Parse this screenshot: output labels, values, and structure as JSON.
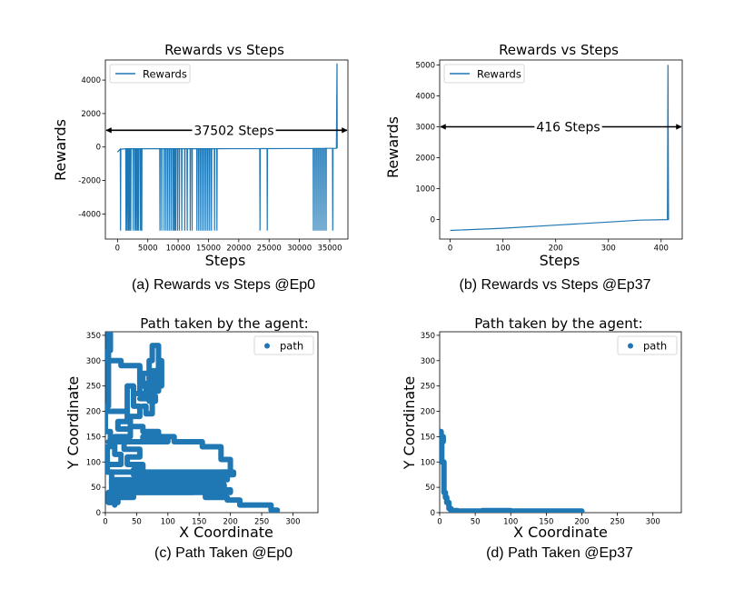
{
  "chart_data": [
    {
      "id": "a",
      "type": "line",
      "title": "Rewards vs Steps",
      "xlabel": "Steps",
      "ylabel": "Rewards",
      "caption": "(a) Rewards vs Steps @Ep0",
      "xlim": [
        -2000,
        38000
      ],
      "ylim": [
        -5500,
        5200
      ],
      "xticks": [
        0,
        5000,
        10000,
        15000,
        20000,
        25000,
        30000,
        35000
      ],
      "yticks": [
        -4000,
        -2000,
        0,
        2000,
        4000
      ],
      "legend": {
        "position": "upper-left",
        "entries": [
          "Rewards"
        ]
      },
      "annotation": {
        "text": "37502 Steps",
        "type": "double-arrow",
        "y": 1000,
        "x_from": -2000,
        "x_to": 38000
      },
      "series": [
        {
          "name": "Rewards",
          "color": "#1f77b4",
          "baseline": [
            [
              0,
              -300
            ],
            [
              500,
              -130
            ],
            [
              1000,
              -100
            ],
            [
              20000,
              -100
            ],
            [
              36000,
              -80
            ],
            [
              37000,
              -50
            ]
          ],
          "spikes_x": [
            500,
            1400,
            1600,
            1800,
            2000,
            2200,
            2600,
            2900,
            3100,
            3300,
            3500,
            3800,
            3900,
            4000,
            7000,
            7300,
            7700,
            8000,
            8300,
            8600,
            8900,
            9200,
            9400,
            9600,
            9900,
            10200,
            10600,
            11100,
            11500,
            12000,
            12300,
            13100,
            13400,
            13700,
            14000,
            14300,
            14600,
            14900,
            15200,
            15500,
            16000,
            16400,
            23500,
            24700,
            32300,
            32600,
            32900,
            33200,
            33500,
            33800,
            34100,
            34400,
            35500
          ],
          "spike_min": -5000,
          "final": {
            "x": 36200,
            "y": 5000
          }
        }
      ]
    },
    {
      "id": "b",
      "type": "line",
      "title": "Rewards vs Steps",
      "xlabel": "Steps",
      "ylabel": "Rewards",
      "caption": "(b) Rewards vs Steps @Ep37",
      "xlim": [
        -20,
        440
      ],
      "ylim": [
        -630,
        5160
      ],
      "xticks": [
        0,
        100,
        200,
        300,
        400
      ],
      "yticks": [
        0,
        1000,
        2000,
        3000,
        4000,
        5000
      ],
      "legend": {
        "position": "upper-left",
        "entries": [
          "Rewards"
        ]
      },
      "annotation": {
        "text": "416 Steps",
        "type": "double-arrow",
        "y": 3000,
        "x_from": -20,
        "x_to": 440
      },
      "series": [
        {
          "name": "Rewards",
          "color": "#1f77b4",
          "points": [
            [
              0,
              -350
            ],
            [
              100,
              -280
            ],
            [
              200,
              -180
            ],
            [
              300,
              -80
            ],
            [
              360,
              -20
            ],
            [
              412,
              0
            ],
            [
              413,
              5000
            ],
            [
              414,
              -20
            ]
          ]
        }
      ]
    },
    {
      "id": "c",
      "type": "scatter",
      "title": "Path taken by the agent:",
      "xlabel": "X Coordinate",
      "ylabel": "Y Coordinate",
      "caption": "(c) Path Taken @Ep0",
      "xlim": [
        0,
        340
      ],
      "ylim": [
        0,
        357
      ],
      "xticks": [
        0,
        50,
        100,
        150,
        200,
        250,
        300
      ],
      "yticks": [
        0,
        50,
        100,
        150,
        200,
        250,
        300,
        350
      ],
      "legend": {
        "position": "upper-right",
        "entries": [
          "path"
        ]
      },
      "series": [
        {
          "name": "path",
          "color": "#1f77b4",
          "paths": [
            [
              [
                8,
                355
              ],
              [
                8,
                320
              ],
              [
                3,
                320
              ],
              [
                3,
                300
              ],
              [
                25,
                300
              ],
              [
                25,
                290
              ],
              [
                55,
                290
              ],
              [
                55,
                255
              ],
              [
                65,
                255
              ],
              [
                65,
                235
              ],
              [
                45,
                235
              ],
              [
                45,
                210
              ],
              [
                55,
                210
              ],
              [
                55,
                190
              ],
              [
                40,
                190
              ],
              [
                40,
                170
              ],
              [
                60,
                170
              ],
              [
                60,
                160
              ],
              [
                85,
                160
              ],
              [
                85,
                150
              ],
              [
                110,
                150
              ],
              [
                110,
                140
              ],
              [
                155,
                140
              ],
              [
                155,
                130
              ],
              [
                185,
                130
              ],
              [
                185,
                105
              ],
              [
                200,
                105
              ],
              [
                200,
                80
              ],
              [
                185,
                80
              ],
              [
                185,
                60
              ],
              [
                160,
                60
              ],
              [
                160,
                30
              ],
              [
                195,
                30
              ],
              [
                195,
                25
              ],
              [
                215,
                25
              ],
              [
                215,
                15
              ],
              [
                265,
                15
              ],
              [
                265,
                5
              ],
              [
                275,
                5
              ]
            ],
            [
              [
                5,
                357
              ],
              [
                5,
                210
              ],
              [
                0,
                210
              ],
              [
                0,
                160
              ],
              [
                8,
                160
              ],
              [
                8,
                130
              ],
              [
                3,
                130
              ],
              [
                3,
                80
              ],
              [
                10,
                80
              ],
              [
                10,
                40
              ],
              [
                5,
                40
              ],
              [
                5,
                25
              ],
              [
                15,
                25
              ],
              [
                15,
                15
              ]
            ],
            [
              [
                5,
                140
              ],
              [
                30,
                140
              ],
              [
                30,
                125
              ],
              [
                55,
                125
              ],
              [
                55,
                110
              ],
              [
                35,
                110
              ],
              [
                35,
                95
              ],
              [
                60,
                95
              ],
              [
                60,
                85
              ],
              [
                45,
                85
              ],
              [
                45,
                75
              ],
              [
                80,
                75
              ],
              [
                80,
                70
              ],
              [
                150,
                70
              ],
              [
                150,
                65
              ],
              [
                185,
                65
              ],
              [
                185,
                55
              ],
              [
                120,
                55
              ],
              [
                120,
                45
              ],
              [
                140,
                45
              ],
              [
                140,
                40
              ],
              [
                45,
                40
              ],
              [
                45,
                30
              ],
              [
                5,
                30
              ]
            ],
            [
              [
                5,
                80
              ],
              [
                205,
                80
              ],
              [
                205,
                75
              ],
              [
                100,
                75
              ],
              [
                100,
                70
              ],
              [
                195,
                70
              ],
              [
                195,
                65
              ],
              [
                10,
                65
              ],
              [
                10,
                55
              ],
              [
                190,
                55
              ],
              [
                190,
                50
              ],
              [
                15,
                50
              ],
              [
                15,
                45
              ],
              [
                200,
                45
              ],
              [
                200,
                40
              ],
              [
                8,
                40
              ]
            ],
            [
              [
                15,
                200
              ],
              [
                35,
                200
              ],
              [
                35,
                180
              ],
              [
                20,
                180
              ],
              [
                20,
                165
              ],
              [
                40,
                165
              ],
              [
                40,
                150
              ],
              [
                15,
                150
              ],
              [
                15,
                115
              ],
              [
                25,
                115
              ],
              [
                25,
                95
              ],
              [
                5,
                95
              ]
            ],
            [
              [
                55,
                255
              ],
              [
                60,
                255
              ],
              [
                60,
                275
              ],
              [
                70,
                275
              ],
              [
                70,
                300
              ],
              [
                75,
                300
              ],
              [
                75,
                330
              ],
              [
                85,
                330
              ],
              [
                85,
                280
              ],
              [
                80,
                280
              ],
              [
                80,
                255
              ]
            ],
            [
              [
                55,
                225
              ],
              [
                70,
                225
              ],
              [
                70,
                240
              ],
              [
                85,
                240
              ],
              [
                85,
                280
              ],
              [
                75,
                280
              ],
              [
                75,
                250
              ],
              [
                90,
                250
              ],
              [
                90,
                300
              ]
            ],
            [
              [
                60,
                210
              ],
              [
                65,
                210
              ],
              [
                65,
                195
              ],
              [
                75,
                195
              ],
              [
                75,
                235
              ],
              [
                70,
                235
              ],
              [
                70,
                220
              ],
              [
                80,
                220
              ],
              [
                80,
                230
              ]
            ],
            [
              [
                5,
                200
              ],
              [
                35,
                200
              ],
              [
                35,
                250
              ],
              [
                45,
                250
              ],
              [
                45,
                235
              ],
              [
                55,
                235
              ],
              [
                55,
                250
              ],
              [
                70,
                250
              ],
              [
                70,
                275
              ]
            ],
            [
              [
                10,
                140
              ],
              [
                90,
                140
              ],
              [
                90,
                150
              ],
              [
                60,
                150
              ],
              [
                60,
                145
              ],
              [
                100,
                145
              ],
              [
                100,
                140
              ],
              [
                40,
                140
              ]
            ],
            [
              [
                5,
                20
              ],
              [
                20,
                20
              ],
              [
                20,
                30
              ],
              [
                10,
                30
              ],
              [
                10,
                35
              ],
              [
                40,
                35
              ],
              [
                40,
                45
              ],
              [
                25,
                45
              ],
              [
                25,
                60
              ],
              [
                10,
                60
              ]
            ]
          ]
        }
      ]
    },
    {
      "id": "d",
      "type": "scatter",
      "title": "Path taken by the agent:",
      "xlabel": "X Coordinate",
      "ylabel": "Y Coordinate",
      "caption": "(d) Path Taken @Ep37",
      "xlim": [
        0,
        340
      ],
      "ylim": [
        0,
        357
      ],
      "xticks": [
        0,
        50,
        100,
        150,
        200,
        250,
        300
      ],
      "yticks": [
        0,
        50,
        100,
        150,
        200,
        250,
        300,
        350
      ],
      "legend": {
        "position": "upper-right",
        "entries": [
          "path"
        ]
      },
      "series": [
        {
          "name": "path",
          "color": "#1f77b4",
          "paths": [
            [
              [
                0,
                160
              ],
              [
                2,
                160
              ],
              [
                2,
                140
              ],
              [
                5,
                140
              ],
              [
                5,
                150
              ],
              [
                3,
                150
              ],
              [
                3,
                100
              ],
              [
                6,
                100
              ],
              [
                6,
                40
              ],
              [
                8,
                40
              ],
              [
                8,
                30
              ],
              [
                10,
                30
              ],
              [
                10,
                20
              ],
              [
                13,
                20
              ],
              [
                13,
                8
              ],
              [
                16,
                8
              ],
              [
                16,
                4
              ],
              [
                25,
                4
              ],
              [
                25,
                3
              ],
              [
                60,
                3
              ],
              [
                60,
                4
              ],
              [
                100,
                4
              ],
              [
                100,
                3
              ],
              [
                200,
                3
              ]
            ]
          ]
        }
      ]
    }
  ]
}
